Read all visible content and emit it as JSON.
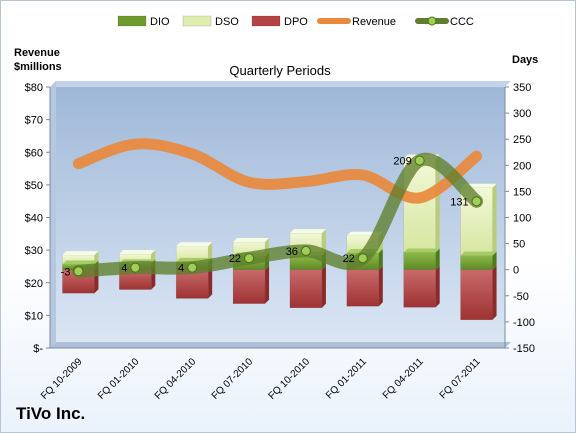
{
  "chart_data": {
    "type": "bar",
    "title": "Quarterly Periods",
    "company": "TiVo Inc.",
    "left_axis_label": "Revenue\n$millions",
    "right_axis_label": "Days",
    "categories": [
      "FQ 10-2009",
      "FQ 01-2010",
      "FQ 04-2010",
      "FQ 07-2010",
      "FQ 10-2010",
      "FQ 01-2011",
      "FQ 04-2011",
      "FQ 07-2011"
    ],
    "left_axis": {
      "min": 0,
      "max": 80,
      "step": 10,
      "tick_labels": [
        "$-",
        "$10",
        "$20",
        "$30",
        "$40",
        "$50",
        "$60",
        "$70",
        "$80"
      ]
    },
    "right_axis": {
      "min": -150,
      "max": 350,
      "step": 50,
      "tick_labels": [
        "-150",
        "-100",
        "-50",
        "0",
        "50",
        "100",
        "150",
        "200",
        "250",
        "300",
        "350"
      ]
    },
    "legend": {
      "position": "top",
      "items": [
        {
          "name": "DIO",
          "color": "#6f9a2e",
          "kind": "bar"
        },
        {
          "name": "DSO",
          "color": "#e0edb0",
          "kind": "bar"
        },
        {
          "name": "DPO",
          "color": "#b44444",
          "kind": "bar"
        },
        {
          "name": "Revenue",
          "color": "#e9893c",
          "kind": "line"
        },
        {
          "name": "CCC",
          "color": "#5f7f2c",
          "kind": "line-marker"
        }
      ]
    },
    "series": [
      {
        "name": "DIO",
        "axis": "right",
        "values": [
          10,
          12,
          15,
          25,
          27,
          32,
          33,
          27
        ]
      },
      {
        "name": "DSO",
        "axis": "right",
        "values": [
          18,
          18,
          30,
          28,
          43,
          33,
          180,
          130
        ]
      },
      {
        "name": "DPO",
        "axis": "right",
        "values": [
          -45,
          -38,
          -55,
          -65,
          -73,
          -70,
          -72,
          -96
        ]
      },
      {
        "name": "Revenue",
        "axis": "left",
        "values": [
          56.5,
          62.5,
          59.5,
          50.8,
          51,
          53,
          46,
          58.8
        ]
      },
      {
        "name": "CCC",
        "axis": "right",
        "values": [
          -3,
          4,
          4,
          22,
          36,
          22,
          209,
          131
        ]
      }
    ],
    "data_labels": [
      "-3",
      "4",
      "4",
      "22",
      "36",
      "22",
      "209",
      "131"
    ],
    "grid": false
  }
}
